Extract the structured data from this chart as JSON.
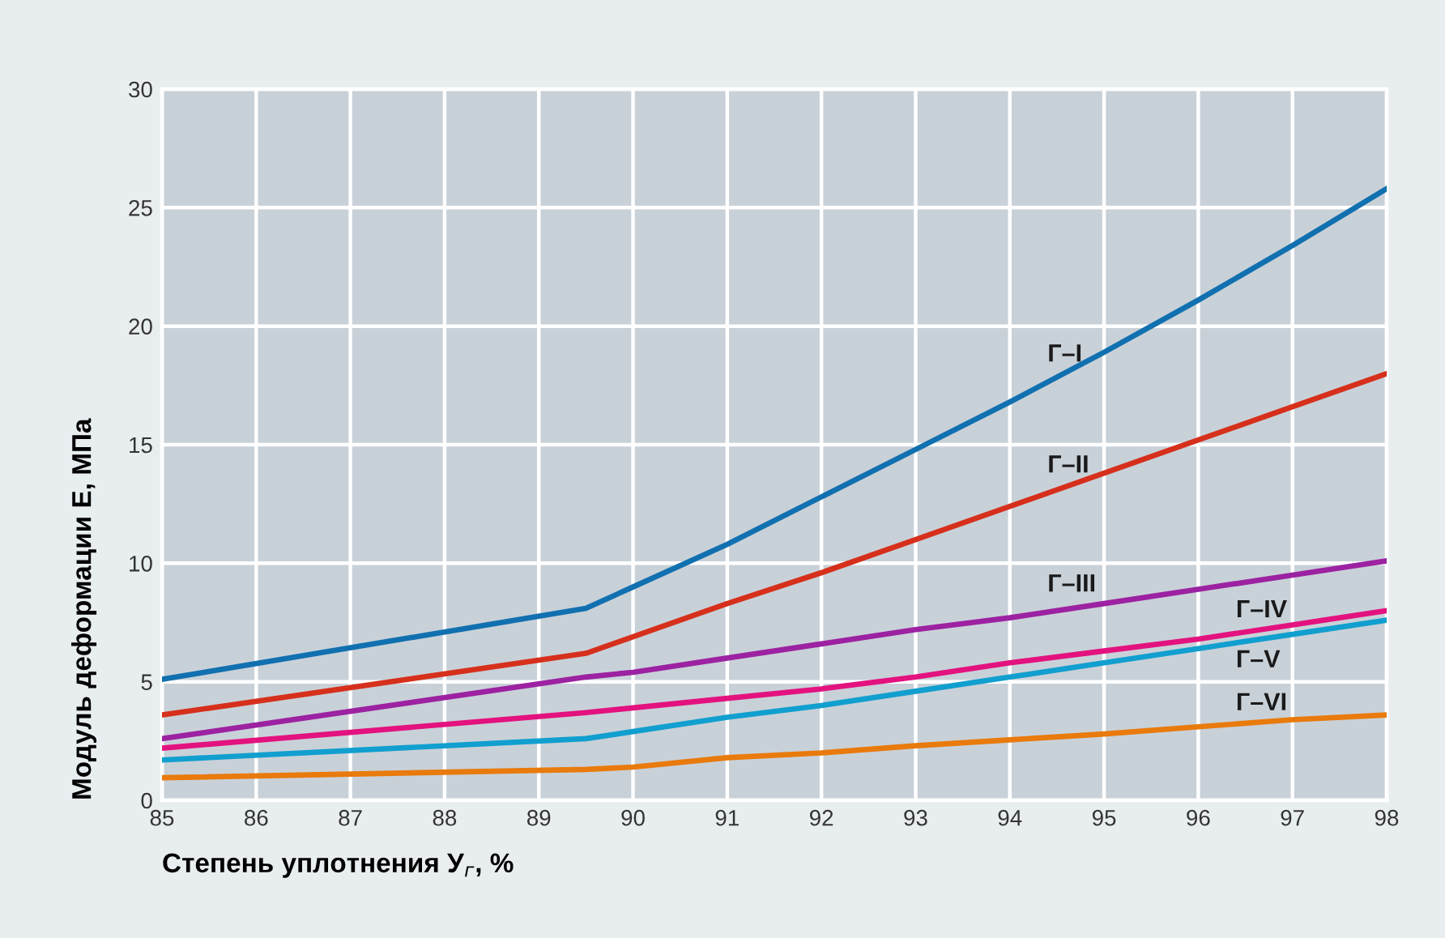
{
  "chart_data": {
    "type": "line",
    "xlabel": "Степень уплотнения У$_{г}$, %",
    "ylabel": "Модуль деформации E, МПа",
    "x": [
      85,
      89.5,
      90,
      91,
      92,
      93,
      94,
      95,
      96,
      97,
      98
    ],
    "series": [
      {
        "name": "Г–I",
        "color": "#1170b0",
        "values": [
          5.1,
          8.1,
          9.0,
          10.8,
          12.8,
          14.8,
          16.8,
          18.9,
          21.1,
          23.4,
          25.8
        ]
      },
      {
        "name": "Г–II",
        "color": "#d6301c",
        "values": [
          3.6,
          6.2,
          6.9,
          8.3,
          9.6,
          11.0,
          12.4,
          13.8,
          15.2,
          16.6,
          18.0
        ]
      },
      {
        "name": "Г–III",
        "color": "#9c22a2",
        "values": [
          2.6,
          5.2,
          5.4,
          6.0,
          6.6,
          7.2,
          7.7,
          8.3,
          8.9,
          9.5,
          10.1
        ]
      },
      {
        "name": "Г–IV",
        "color": "#e3127f",
        "values": [
          2.2,
          3.7,
          3.9,
          4.3,
          4.7,
          5.2,
          5.8,
          6.3,
          6.8,
          7.4,
          8.0
        ]
      },
      {
        "name": "Г–V",
        "color": "#119fcf",
        "values": [
          1.7,
          2.6,
          2.9,
          3.5,
          4.0,
          4.6,
          5.2,
          5.8,
          6.4,
          7.0,
          7.6
        ]
      },
      {
        "name": "Г–VI",
        "color": "#e97a0c",
        "values": [
          0.95,
          1.3,
          1.4,
          1.8,
          2.0,
          2.3,
          2.55,
          2.8,
          3.1,
          3.4,
          3.6
        ]
      }
    ],
    "xlim": [
      85,
      98
    ],
    "ylim": [
      0,
      30
    ],
    "xticks": [
      85,
      86,
      87,
      88,
      89,
      90,
      91,
      92,
      93,
      94,
      95,
      96,
      97,
      98
    ],
    "yticks": [
      0,
      5,
      10,
      15,
      20,
      25,
      30
    ],
    "grid": true,
    "legend": false,
    "marker": "none",
    "line_style": "solid"
  }
}
